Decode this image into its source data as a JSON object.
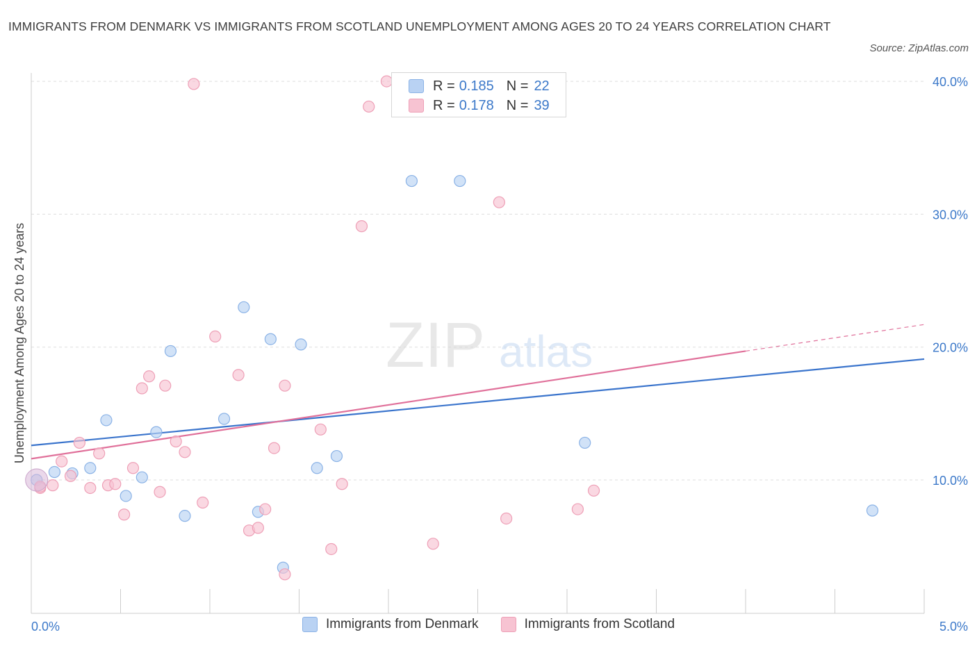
{
  "title": "IMMIGRANTS FROM DENMARK VS IMMIGRANTS FROM SCOTLAND UNEMPLOYMENT AMONG AGES 20 TO 24 YEARS CORRELATION CHART",
  "source": "Source: ZipAtlas.com",
  "watermark": {
    "zip": "ZIP",
    "atlas": "atlas"
  },
  "legend_top": [
    {
      "r_label": "R =",
      "r_value": "0.185",
      "n_label": "N =",
      "n_value": "22"
    },
    {
      "r_label": "R =",
      "r_value": "0.178",
      "n_label": "N =",
      "n_value": "39"
    }
  ],
  "legend_bottom": [
    {
      "label": "Immigrants from Denmark"
    },
    {
      "label": "Immigrants from Scotland"
    }
  ],
  "colors": {
    "denmark_fill": "#b9d2f3",
    "denmark_stroke": "#8ab2e6",
    "denmark_line": "#3a74cc",
    "scotland_fill": "#f7c3d2",
    "scotland_stroke": "#ee9fb6",
    "scotland_line": "#e0709a",
    "tick_label": "#3b78c9",
    "grid": "#dddddd"
  },
  "chart_data": {
    "type": "scatter",
    "title": "IMMIGRANTS FROM DENMARK VS IMMIGRANTS FROM SCOTLAND UNEMPLOYMENT AMONG AGES 20 TO 24 YEARS CORRELATION CHART",
    "xlabel": "",
    "ylabel": "Unemployment Among Ages 20 to 24 years",
    "xlim": [
      0,
      5
    ],
    "ylim": [
      0,
      40
    ],
    "x_ticks_labeled": [
      {
        "value": 0,
        "label": "0.0%"
      },
      {
        "value": 5,
        "label": "5.0%"
      }
    ],
    "y_ticks": [
      {
        "value": 10,
        "label": "10.0%"
      },
      {
        "value": 20,
        "label": "20.0%"
      },
      {
        "value": 30,
        "label": "30.0%"
      },
      {
        "value": 40,
        "label": "40.0%"
      }
    ],
    "grid": true,
    "legend": "top-center and bottom-center",
    "series": [
      {
        "name": "Immigrants from Denmark",
        "points": [
          [
            0.03,
            10.0
          ],
          [
            0.13,
            10.6
          ],
          [
            0.23,
            10.5
          ],
          [
            0.33,
            10.9
          ],
          [
            0.42,
            14.5
          ],
          [
            0.53,
            8.8
          ],
          [
            0.62,
            10.2
          ],
          [
            0.7,
            13.6
          ],
          [
            0.78,
            19.7
          ],
          [
            0.86,
            7.3
          ],
          [
            1.08,
            14.6
          ],
          [
            1.19,
            23.0
          ],
          [
            1.27,
            7.6
          ],
          [
            1.34,
            20.6
          ],
          [
            1.41,
            3.4
          ],
          [
            1.51,
            20.2
          ],
          [
            1.6,
            10.9
          ],
          [
            1.71,
            11.8
          ],
          [
            2.13,
            32.5
          ],
          [
            2.4,
            32.5
          ],
          [
            3.1,
            12.8
          ],
          [
            4.71,
            7.7
          ]
        ],
        "trend": {
          "x0": 0,
          "y0": 12.6,
          "x1": 5,
          "y1": 19.1
        }
      },
      {
        "name": "Immigrants from Scotland",
        "points": [
          [
            0.05,
            9.4
          ],
          [
            0.12,
            9.6
          ],
          [
            0.17,
            11.4
          ],
          [
            0.22,
            10.3
          ],
          [
            0.27,
            12.8
          ],
          [
            0.33,
            9.4
          ],
          [
            0.38,
            12.0
          ],
          [
            0.43,
            9.6
          ],
          [
            0.47,
            9.7
          ],
          [
            0.52,
            7.4
          ],
          [
            0.57,
            10.9
          ],
          [
            0.62,
            16.9
          ],
          [
            0.66,
            17.8
          ],
          [
            0.72,
            9.1
          ],
          [
            0.75,
            17.1
          ],
          [
            0.81,
            12.9
          ],
          [
            0.86,
            12.1
          ],
          [
            0.96,
            8.3
          ],
          [
            1.03,
            20.8
          ],
          [
            1.16,
            17.9
          ],
          [
            1.22,
            6.2
          ],
          [
            1.27,
            6.4
          ],
          [
            1.31,
            7.8
          ],
          [
            1.36,
            12.4
          ],
          [
            1.42,
            2.9
          ],
          [
            1.42,
            17.1
          ],
          [
            1.62,
            13.8
          ],
          [
            1.68,
            4.8
          ],
          [
            1.74,
            9.7
          ],
          [
            1.85,
            29.1
          ],
          [
            1.89,
            38.1
          ],
          [
            1.99,
            40.0
          ],
          [
            2.25,
            5.2
          ],
          [
            2.62,
            30.9
          ],
          [
            2.66,
            7.1
          ],
          [
            3.06,
            7.8
          ],
          [
            3.15,
            9.2
          ],
          [
            0.91,
            39.8
          ],
          [
            0.05,
            9.5
          ]
        ],
        "trend": {
          "x0": 0,
          "y0": 11.6,
          "x1": 4,
          "y1": 19.7
        },
        "trend_extension": {
          "x0": 4,
          "y0": 19.7,
          "x1": 5,
          "y1": 21.7
        }
      }
    ]
  }
}
